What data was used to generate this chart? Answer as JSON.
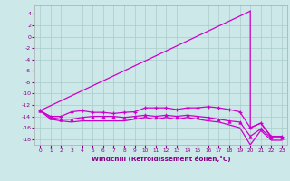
{
  "title": "",
  "xlabel": "Windchill (Refroidissement éolien,°C)",
  "bg_color": "#cce8e8",
  "grid_color": "#aacccc",
  "line_color": "#cc00cc",
  "xlim": [
    -0.5,
    23.5
  ],
  "ylim": [
    -19,
    5.5
  ],
  "yticks": [
    4,
    2,
    0,
    -2,
    -4,
    -6,
    -8,
    -10,
    -12,
    -14,
    -16,
    -18
  ],
  "xticks": [
    0,
    1,
    2,
    3,
    4,
    5,
    6,
    7,
    8,
    9,
    10,
    11,
    12,
    13,
    14,
    15,
    16,
    17,
    18,
    19,
    20,
    21,
    22,
    23
  ],
  "line_diag": {
    "x": [
      0,
      20
    ],
    "y": [
      -13.0,
      4.5
    ]
  },
  "line_drop": {
    "x": [
      20,
      20,
      21,
      22,
      23
    ],
    "y": [
      4.5,
      -16.0,
      -15.2,
      -17.7,
      -17.7
    ]
  },
  "line_markers": {
    "x": [
      0,
      1,
      2,
      3,
      4,
      5,
      6,
      7,
      8,
      9,
      10,
      11,
      12,
      13,
      14,
      15,
      16,
      17,
      18,
      19,
      20,
      21,
      22,
      23
    ],
    "y": [
      -13.0,
      -14.0,
      -14.0,
      -13.2,
      -13.0,
      -13.3,
      -13.3,
      -13.5,
      -13.3,
      -13.2,
      -12.5,
      -12.5,
      -12.5,
      -12.8,
      -12.5,
      -12.5,
      -12.3,
      -12.5,
      -12.8,
      -13.2,
      -16.0,
      -15.2,
      -17.5,
      -17.5
    ],
    "marker": "+"
  },
  "line_tri": {
    "x": [
      0,
      1,
      2,
      3,
      4,
      5,
      6,
      7,
      8,
      9,
      10,
      11,
      12,
      13,
      14,
      15,
      16,
      17,
      18,
      19,
      20,
      21,
      22,
      23
    ],
    "y": [
      -13.0,
      -14.2,
      -14.5,
      -14.5,
      -14.2,
      -14.0,
      -14.0,
      -14.0,
      -14.2,
      -14.0,
      -13.8,
      -14.0,
      -13.8,
      -14.0,
      -13.8,
      -14.0,
      -14.2,
      -14.5,
      -14.8,
      -15.0,
      -17.5,
      -16.2,
      -17.8,
      -17.8
    ],
    "marker": "^"
  },
  "line_bottom": {
    "x": [
      0,
      1,
      2,
      3,
      4,
      5,
      6,
      7,
      8,
      9,
      10,
      11,
      12,
      13,
      14,
      15,
      16,
      17,
      18,
      19,
      20,
      21,
      22,
      23
    ],
    "y": [
      -13.0,
      -14.5,
      -14.8,
      -15.0,
      -14.8,
      -14.8,
      -14.8,
      -14.8,
      -14.8,
      -14.5,
      -14.2,
      -14.5,
      -14.2,
      -14.5,
      -14.2,
      -14.5,
      -14.8,
      -15.0,
      -15.5,
      -16.0,
      -19.0,
      -16.5,
      -18.2,
      -18.2
    ]
  }
}
